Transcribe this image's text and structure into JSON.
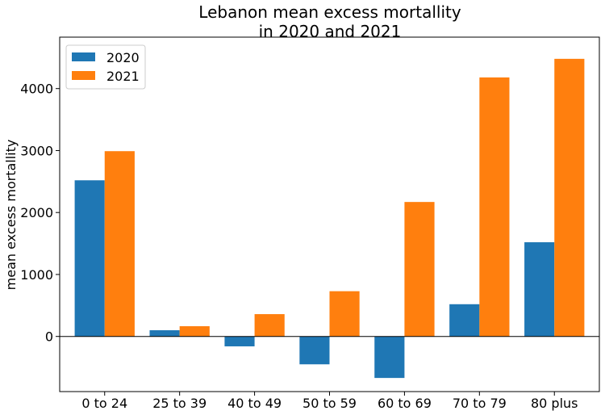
{
  "chart_data": {
    "type": "bar",
    "title_line1": "Lebanon mean excess mortallity",
    "title_line2": "in 2020 and 2021",
    "xlabel": "",
    "ylabel": "mean excess mortallity",
    "categories": [
      "0 to 24",
      "25 to 39",
      "40 to 49",
      "50 to 59",
      "60 to 69",
      "70 to 79",
      "80 plus"
    ],
    "series": [
      {
        "name": "2020",
        "color": "#1f77b4",
        "values": [
          2520,
          100,
          -160,
          -450,
          -670,
          520,
          1520
        ]
      },
      {
        "name": "2021",
        "color": "#ff7f0e",
        "values": [
          2990,
          165,
          360,
          730,
          2170,
          4180,
          4480
        ]
      }
    ],
    "ylim": [
      -890,
      4830
    ],
    "yticks": [
      0,
      1000,
      2000,
      3000,
      4000
    ],
    "zero_line": true,
    "grid": false,
    "legend_position": "upper-left"
  }
}
